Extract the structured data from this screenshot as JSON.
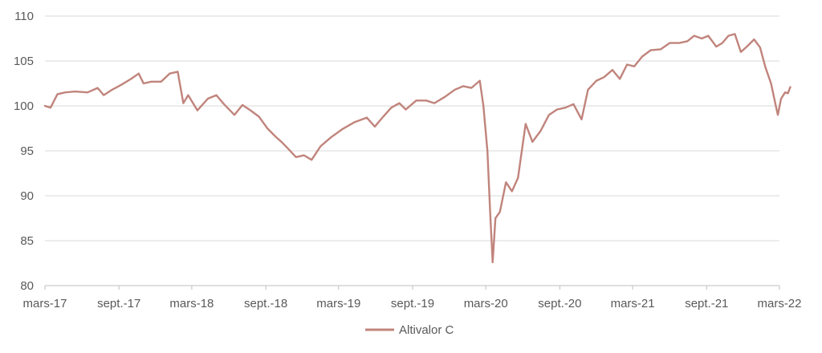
{
  "chart_data": {
    "type": "line",
    "title": "",
    "xlabel": "",
    "ylabel": "",
    "ylim": [
      80,
      110
    ],
    "yticks": [
      80,
      85,
      90,
      95,
      100,
      105,
      110
    ],
    "grid": true,
    "legend_position": "bottom",
    "xlim": [
      "2017-03-01",
      "2022-03-01"
    ],
    "xticks": [
      {
        "date": "2017-03-01",
        "label": "mars-17"
      },
      {
        "date": "2017-09-01",
        "label": "sept.-17"
      },
      {
        "date": "2018-03-01",
        "label": "mars-18"
      },
      {
        "date": "2018-09-01",
        "label": "sept.-18"
      },
      {
        "date": "2019-03-01",
        "label": "mars-19"
      },
      {
        "date": "2019-09-01",
        "label": "sept.-19"
      },
      {
        "date": "2020-03-01",
        "label": "mars-20"
      },
      {
        "date": "2020-09-01",
        "label": "sept.-20"
      },
      {
        "date": "2021-03-01",
        "label": "mars-21"
      },
      {
        "date": "2021-09-01",
        "label": "sept.-21"
      },
      {
        "date": "2022-03-01",
        "label": "mars-22"
      }
    ],
    "series": [
      {
        "name": "Altivalor C",
        "color": "#c0847c",
        "points": [
          [
            "2017-03-01",
            100.0
          ],
          [
            "2017-03-15",
            99.8
          ],
          [
            "2017-04-01",
            101.3
          ],
          [
            "2017-04-20",
            101.5
          ],
          [
            "2017-05-15",
            101.6
          ],
          [
            "2017-06-15",
            101.5
          ],
          [
            "2017-07-10",
            102.0
          ],
          [
            "2017-07-25",
            101.2
          ],
          [
            "2017-08-15",
            101.8
          ],
          [
            "2017-09-05",
            102.3
          ],
          [
            "2017-10-01",
            103.0
          ],
          [
            "2017-10-20",
            103.6
          ],
          [
            "2017-11-01",
            102.5
          ],
          [
            "2017-11-20",
            102.7
          ],
          [
            "2017-12-15",
            102.7
          ],
          [
            "2018-01-05",
            103.6
          ],
          [
            "2018-01-25",
            103.8
          ],
          [
            "2018-02-08",
            100.3
          ],
          [
            "2018-02-20",
            101.2
          ],
          [
            "2018-03-15",
            99.5
          ],
          [
            "2018-04-10",
            100.8
          ],
          [
            "2018-05-01",
            101.2
          ],
          [
            "2018-05-20",
            100.2
          ],
          [
            "2018-06-15",
            99.0
          ],
          [
            "2018-07-05",
            100.1
          ],
          [
            "2018-07-25",
            99.5
          ],
          [
            "2018-08-15",
            98.8
          ],
          [
            "2018-09-05",
            97.5
          ],
          [
            "2018-09-25",
            96.6
          ],
          [
            "2018-10-10",
            96.0
          ],
          [
            "2018-10-25",
            95.3
          ],
          [
            "2018-11-15",
            94.3
          ],
          [
            "2018-12-05",
            94.5
          ],
          [
            "2018-12-24",
            94.0
          ],
          [
            "2019-01-15",
            95.5
          ],
          [
            "2019-02-10",
            96.5
          ],
          [
            "2019-03-10",
            97.4
          ],
          [
            "2019-04-10",
            98.2
          ],
          [
            "2019-05-10",
            98.7
          ],
          [
            "2019-05-30",
            97.7
          ],
          [
            "2019-06-20",
            98.8
          ],
          [
            "2019-07-10",
            99.8
          ],
          [
            "2019-07-30",
            100.3
          ],
          [
            "2019-08-15",
            99.6
          ],
          [
            "2019-09-10",
            100.6
          ],
          [
            "2019-10-05",
            100.6
          ],
          [
            "2019-10-25",
            100.3
          ],
          [
            "2019-11-20",
            101.0
          ],
          [
            "2019-12-15",
            101.8
          ],
          [
            "2020-01-05",
            102.2
          ],
          [
            "2020-01-25",
            102.0
          ],
          [
            "2020-02-15",
            102.8
          ],
          [
            "2020-02-24",
            100.0
          ],
          [
            "2020-03-05",
            95.0
          ],
          [
            "2020-03-12",
            88.0
          ],
          [
            "2020-03-18",
            82.6
          ],
          [
            "2020-03-25",
            87.5
          ],
          [
            "2020-04-05",
            88.2
          ],
          [
            "2020-04-20",
            91.5
          ],
          [
            "2020-05-05",
            90.5
          ],
          [
            "2020-05-20",
            92.0
          ],
          [
            "2020-06-08",
            98.0
          ],
          [
            "2020-06-25",
            96.0
          ],
          [
            "2020-07-15",
            97.2
          ],
          [
            "2020-08-05",
            99.0
          ],
          [
            "2020-08-25",
            99.6
          ],
          [
            "2020-09-15",
            99.8
          ],
          [
            "2020-10-05",
            100.2
          ],
          [
            "2020-10-25",
            98.5
          ],
          [
            "2020-11-10",
            101.8
          ],
          [
            "2020-12-01",
            102.8
          ],
          [
            "2020-12-20",
            103.2
          ],
          [
            "2021-01-10",
            104.0
          ],
          [
            "2021-01-28",
            103.0
          ],
          [
            "2021-02-15",
            104.6
          ],
          [
            "2021-03-05",
            104.4
          ],
          [
            "2021-03-25",
            105.5
          ],
          [
            "2021-04-15",
            106.2
          ],
          [
            "2021-05-10",
            106.3
          ],
          [
            "2021-06-01",
            107.0
          ],
          [
            "2021-06-25",
            107.0
          ],
          [
            "2021-07-15",
            107.2
          ],
          [
            "2021-08-01",
            107.8
          ],
          [
            "2021-08-20",
            107.5
          ],
          [
            "2021-09-05",
            107.8
          ],
          [
            "2021-09-25",
            106.6
          ],
          [
            "2021-10-10",
            107.0
          ],
          [
            "2021-10-25",
            107.8
          ],
          [
            "2021-11-10",
            108.0
          ],
          [
            "2021-11-25",
            106.0
          ],
          [
            "2021-12-10",
            106.6
          ],
          [
            "2021-12-28",
            107.4
          ],
          [
            "2022-01-12",
            106.5
          ],
          [
            "2022-01-25",
            104.3
          ],
          [
            "2022-02-08",
            102.5
          ],
          [
            "2022-02-20",
            100.0
          ],
          [
            "2022-02-25",
            99.0
          ],
          [
            "2022-03-05",
            100.8
          ],
          [
            "2022-03-15",
            101.5
          ],
          [
            "2022-03-22",
            101.4
          ],
          [
            "2022-03-28",
            102.1
          ]
        ]
      }
    ]
  }
}
